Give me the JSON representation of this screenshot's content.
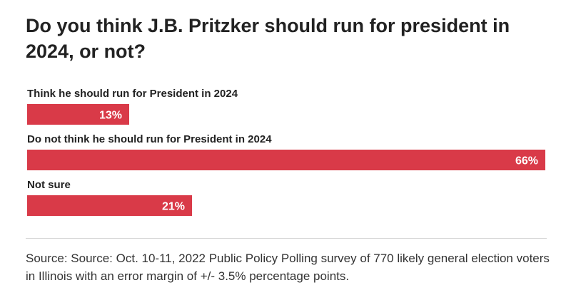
{
  "title": "Do you think J.B. Pritzker should run for president in 2024, or not?",
  "source": "Source: Source: Oct. 10-11, 2022 Public Policy Polling survey of 770 likely general election voters in Illinois with an error margin of +/- 3.5% percentage points.",
  "colors": {
    "bar": "#d93a48",
    "bar_text": "#ffffff",
    "label_text": "#222222"
  },
  "chart_data": {
    "type": "bar",
    "orientation": "horizontal",
    "categories": [
      "Think he should run for President in 2024",
      "Do not think he should run for President in 2024",
      "Not sure"
    ],
    "values": [
      13,
      66,
      21
    ],
    "value_labels": [
      "13%",
      "66%",
      "21%"
    ],
    "xlim": [
      0,
      66
    ],
    "grid": false,
    "legend": "none"
  }
}
